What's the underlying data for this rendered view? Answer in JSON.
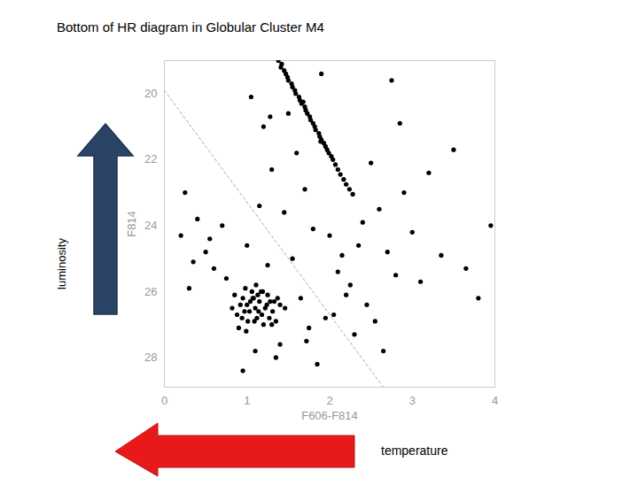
{
  "chart_data": {
    "type": "scatter",
    "title": "Bottom of HR diagram in Globular Cluster M4",
    "x_label": "F606-F814",
    "y_label": "F814",
    "annotations": [
      "luminosity",
      "temperature"
    ],
    "marker": "circle",
    "color": "#000000",
    "xlim": [
      0,
      4
    ],
    "ylim": [
      28.9,
      19
    ],
    "xticks": [
      0,
      1,
      2,
      3,
      4
    ],
    "yticks": [
      20,
      22,
      24,
      26,
      28
    ],
    "limit_line": {
      "x": [
        0,
        2.65
      ],
      "y": [
        19.9,
        28.9
      ],
      "line_style": "dashed"
    },
    "x": [
      1.38,
      1.42,
      1.41,
      1.45,
      1.47,
      1.49,
      1.5,
      1.54,
      1.55,
      1.58,
      1.59,
      1.63,
      1.64,
      1.66,
      1.7,
      1.71,
      1.73,
      1.76,
      1.77,
      1.8,
      1.82,
      1.83,
      1.87,
      1.88,
      1.9,
      1.93,
      1.95,
      1.97,
      1.99,
      2.02,
      2.04,
      2.07,
      2.1,
      2.13,
      2.17,
      2.2,
      2.24,
      2.28,
      1.68,
      1.89,
      0.85,
      0.92,
      0.98,
      1.03,
      1.08,
      1.12,
      1.17,
      1.22,
      1.28,
      1.35,
      0.88,
      0.95,
      1.01,
      1.06,
      1.1,
      1.15,
      1.2,
      1.25,
      1.31,
      1.4,
      0.9,
      0.97,
      1.04,
      1.09,
      1.13,
      1.18,
      1.24,
      1.3,
      1.37,
      1.46,
      0.82,
      0.94,
      1.0,
      1.07,
      1.14,
      1.19,
      1.27,
      1.33,
      0.99,
      1.11,
      0.25,
      0.4,
      0.55,
      0.7,
      0.35,
      0.6,
      0.2,
      0.75,
      0.5,
      0.3,
      1.05,
      1.2,
      1.3,
      1.15,
      1.0,
      1.25,
      1.1,
      1.35,
      0.95,
      1.4,
      1.5,
      1.6,
      1.7,
      1.8,
      1.55,
      1.65,
      1.75,
      1.85,
      1.95,
      1.45,
      2.0,
      2.1,
      2.2,
      2.3,
      2.4,
      2.05,
      2.15,
      2.25,
      2.35,
      2.45,
      2.5,
      2.6,
      2.7,
      2.8,
      2.55,
      2.65,
      2.9,
      3.0,
      3.1,
      3.2,
      3.35,
      3.5,
      3.65,
      3.8,
      3.95,
      2.75,
      1.9,
      1.72,
      1.28,
      2.85
    ],
    "y": [
      19.0,
      19.1,
      19.2,
      19.3,
      19.4,
      19.5,
      19.6,
      19.7,
      19.8,
      19.9,
      20.0,
      20.1,
      20.2,
      20.3,
      20.4,
      20.5,
      20.6,
      20.7,
      20.8,
      20.9,
      21.0,
      21.1,
      21.2,
      21.3,
      21.4,
      21.5,
      21.6,
      21.7,
      21.8,
      21.9,
      22.0,
      22.15,
      22.3,
      22.45,
      22.6,
      22.75,
      22.9,
      23.05,
      20.25,
      21.45,
      26.1,
      26.4,
      25.9,
      26.6,
      26.2,
      26.8,
      26.0,
      26.5,
      26.3,
      26.9,
      26.7,
      26.2,
      26.9,
      26.0,
      26.5,
      26.3,
      27.0,
      26.1,
      26.6,
      26.4,
      27.1,
      26.6,
      26.3,
      26.9,
      26.1,
      26.7,
      26.4,
      27.0,
      26.2,
      26.5,
      26.5,
      26.8,
      26.4,
      26.2,
      26.6,
      26.0,
      26.8,
      26.3,
      27.2,
      25.8,
      23.0,
      23.8,
      24.4,
      24.0,
      25.1,
      25.3,
      24.3,
      25.6,
      24.8,
      25.9,
      20.1,
      21.0,
      22.3,
      23.4,
      24.6,
      25.2,
      27.8,
      28.0,
      28.4,
      27.6,
      20.6,
      21.8,
      22.9,
      24.1,
      25.0,
      26.2,
      27.1,
      28.2,
      26.8,
      23.6,
      24.3,
      25.4,
      26.1,
      27.3,
      23.9,
      26.7,
      24.9,
      25.8,
      24.6,
      26.4,
      22.1,
      23.5,
      24.8,
      25.5,
      26.9,
      27.8,
      23.0,
      24.2,
      25.7,
      22.4,
      24.9,
      21.7,
      25.3,
      26.2,
      24.0,
      19.6,
      19.4,
      27.5,
      20.7,
      20.9
    ]
  }
}
